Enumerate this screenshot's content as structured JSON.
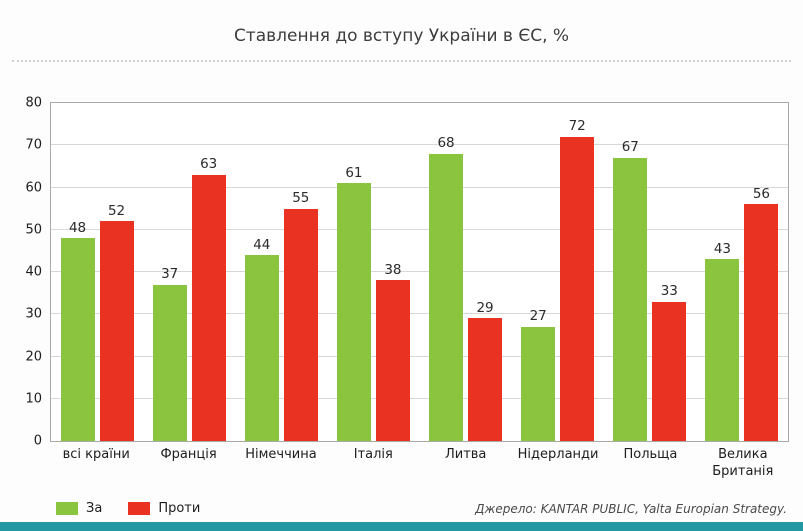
{
  "header": {
    "title": "Ставлення до вступу України в ЄС, %"
  },
  "footer": {
    "source": "Джерело: KANTAR PUBLIC, Yalta Europian Strategy."
  },
  "colors": {
    "accent_bar": "#2398a2",
    "grid": "#d8d8d8",
    "plot_border": "#a9a9a9",
    "series_za": "#8bc53f",
    "series_proty": "#ea3223"
  },
  "chart_data": {
    "type": "bar",
    "title": "Ставлення до вступу України в ЄС, %",
    "categories": [
      "всі країни",
      "Франція",
      "Німеччина",
      "Італія",
      "Литва",
      "Нідерланди",
      "Польща",
      "Велика Британія"
    ],
    "series": [
      {
        "name": "За",
        "color": "#8bc53f",
        "values": [
          48,
          37,
          44,
          61,
          68,
          27,
          67,
          43
        ]
      },
      {
        "name": "Проти",
        "color": "#ea3223",
        "values": [
          52,
          63,
          55,
          38,
          29,
          72,
          33,
          56
        ]
      }
    ],
    "xlabel": "",
    "ylabel": "",
    "ylim": [
      0,
      80
    ],
    "ytick_step": 10,
    "grid": true,
    "legend_position": "bottom-left",
    "value_labels": true
  }
}
